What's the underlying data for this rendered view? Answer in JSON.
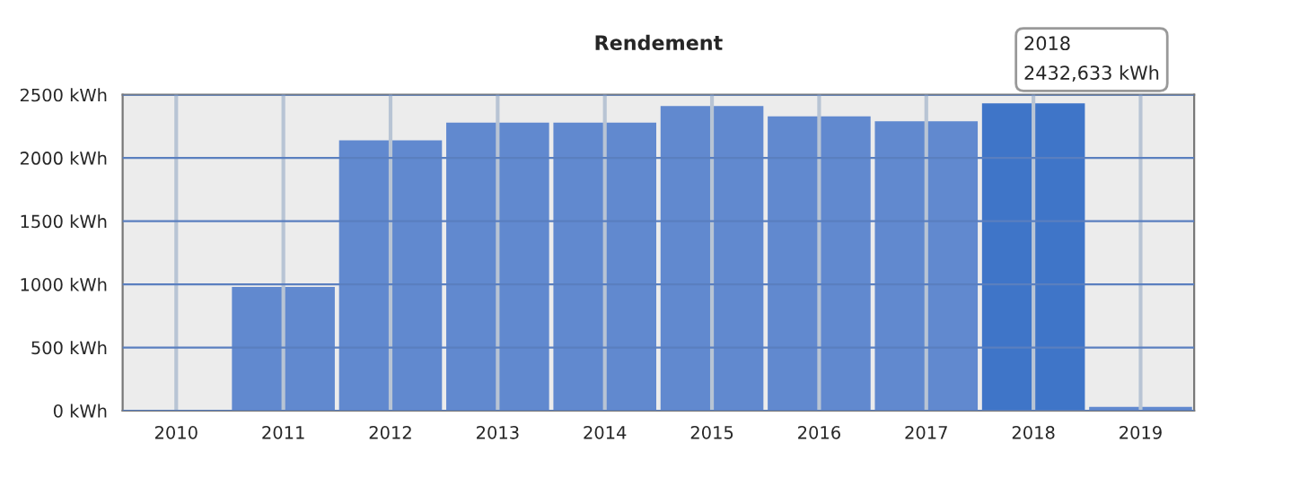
{
  "chart_data": {
    "type": "bar",
    "title": "Rendement",
    "categories": [
      "2010",
      "2011",
      "2012",
      "2013",
      "2014",
      "2015",
      "2016",
      "2017",
      "2018",
      "2019"
    ],
    "values": [
      null,
      980,
      2140,
      2280,
      2280,
      2410,
      2330,
      2290,
      2432.633,
      30
    ],
    "colors": [
      "#6189cf",
      "#6189cf",
      "#6189cf",
      "#6189cf",
      "#6189cf",
      "#6189cf",
      "#6189cf",
      "#6189cf",
      "#3f75c8",
      "#6189cf"
    ],
    "ylim": [
      0,
      2500
    ],
    "yticks": [
      {
        "value": 0,
        "label": "0 kWh"
      },
      {
        "value": 500,
        "label": "500 kWh"
      },
      {
        "value": 1000,
        "label": "1000 kWh"
      },
      {
        "value": 1500,
        "label": "1500 kWh"
      },
      {
        "value": 2000,
        "label": "2000 kWh"
      },
      {
        "value": 2500,
        "label": "2500 kWh"
      }
    ],
    "grid": true,
    "annotations": [
      {
        "text": "2018\n2432,633 kWh",
        "x": "2018",
        "y": 2432.633
      }
    ]
  }
}
